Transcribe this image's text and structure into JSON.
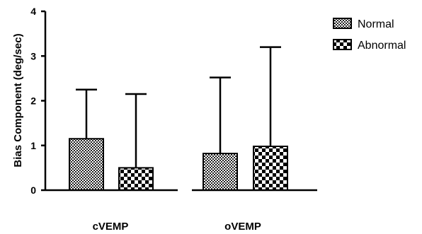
{
  "chart_data": {
    "type": "bar",
    "categories": [
      "cVEMP",
      "oVEMP"
    ],
    "ylabel": "Bias Component (deg/sec)",
    "xlabel": "",
    "ylim": [
      0,
      4
    ],
    "yticks": [
      0,
      1,
      2,
      3,
      4
    ],
    "error_bars": "upper",
    "legend_position": "top-right",
    "grid": false,
    "series": [
      {
        "name": "Normal",
        "pattern": "fine-checker",
        "values": [
          1.15,
          0.82
        ],
        "error_upper": [
          2.25,
          2.52
        ]
      },
      {
        "name": "Abnormal",
        "pattern": "coarse-checker",
        "values": [
          0.5,
          0.98
        ],
        "error_upper": [
          2.15,
          3.2
        ]
      }
    ]
  }
}
